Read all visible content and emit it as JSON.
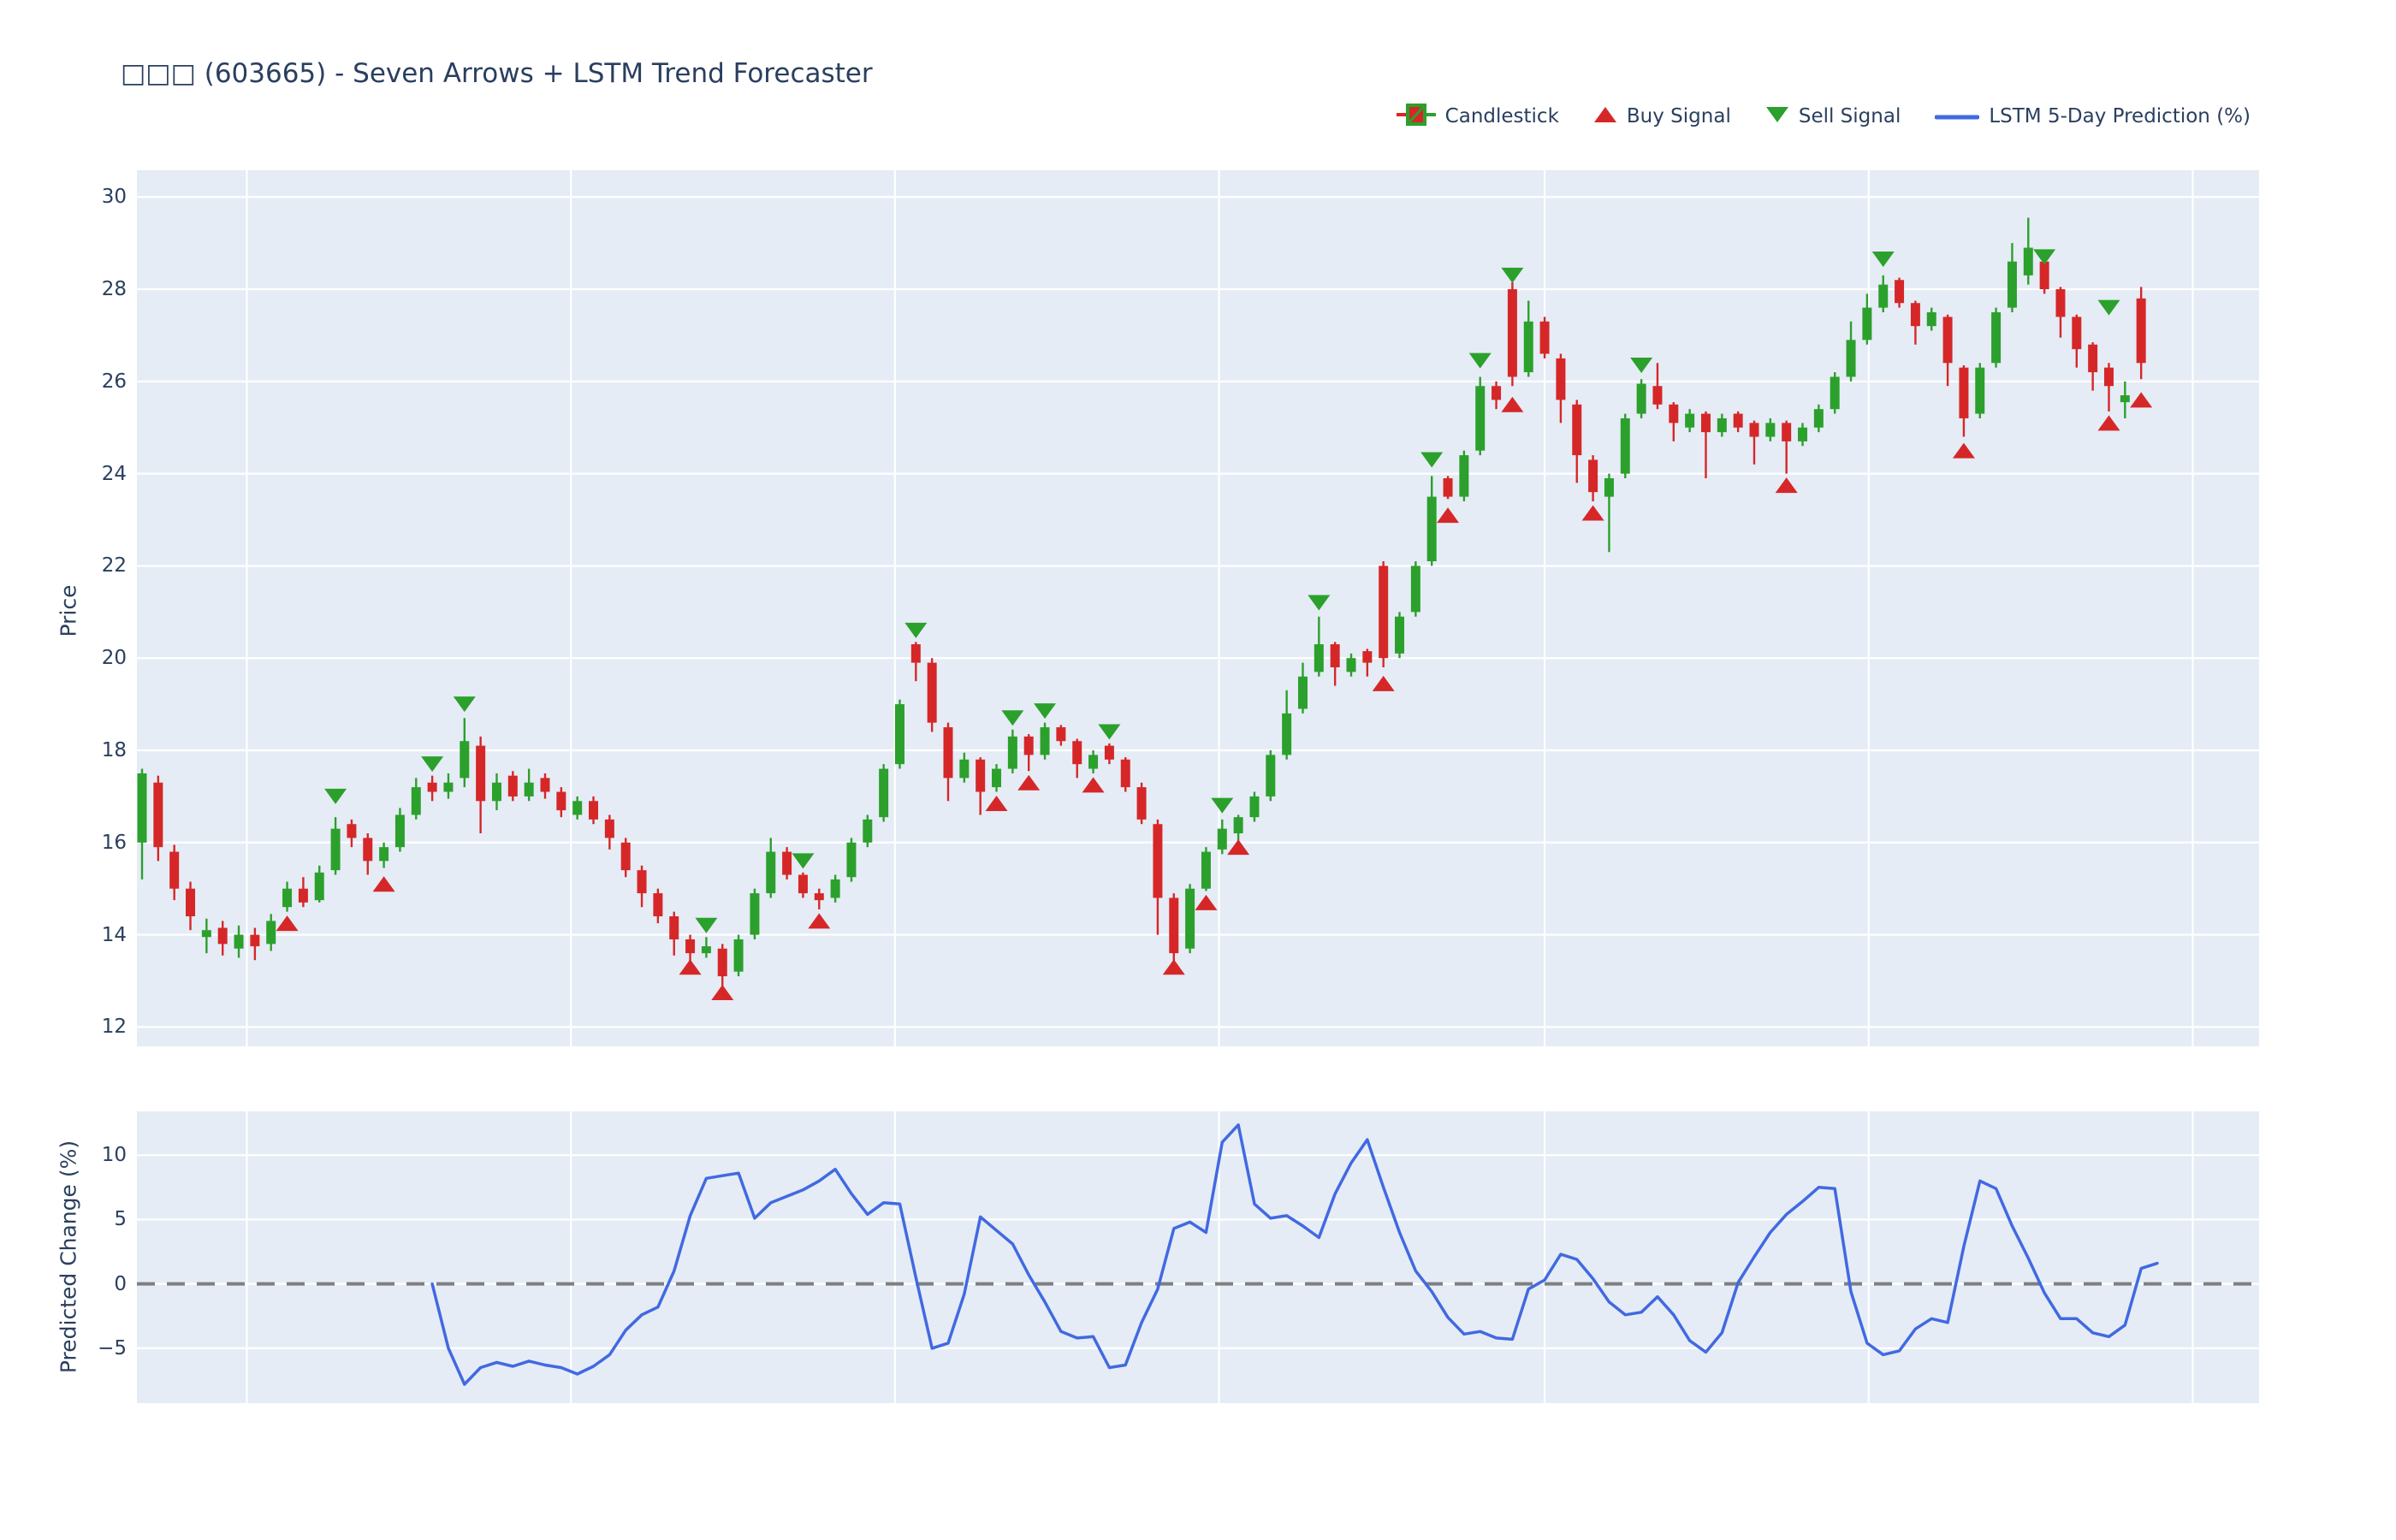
{
  "page": {
    "title": "□□□ (603665) - Seven Arrows + LSTM Trend Forecaster"
  },
  "legend": {
    "items": [
      {
        "id": "candlestick",
        "label": "Candlestick"
      },
      {
        "id": "buy-signal",
        "label": "Buy Signal"
      },
      {
        "id": "sell-signal",
        "label": "Sell Signal"
      },
      {
        "id": "lstm-line",
        "label": "LSTM 5-Day Prediction (%)"
      }
    ]
  },
  "colors": {
    "up": "#2ca02c",
    "down": "#d62728",
    "buy_marker": "#d62728",
    "sell_marker": "#2ca02c",
    "prediction_line": "#4169e1",
    "zero_line": "#7f7f7f",
    "plot_background": "#e5ecf6",
    "gridline": "#ffffff",
    "text": "#2a3f5f"
  },
  "chart_data": {
    "type": "candlestick",
    "title": "□□□ (603665) - Seven Arrows + LSTM Trend Forecaster",
    "layout_hints": {
      "grid": true,
      "x_tick_labels_visible": false,
      "legend_position": "top-right",
      "x_gridline_indices": [
        6.5,
        26.6,
        46.7,
        66.8,
        87.0,
        107.1,
        127.2
      ]
    },
    "price_panel": {
      "ylabel": "Price",
      "ylim": [
        11.58,
        30.58
      ],
      "yticks": [
        {
          "label": "12",
          "value": 12
        },
        {
          "label": "14",
          "value": 14
        },
        {
          "label": "16",
          "value": 16
        },
        {
          "label": "18",
          "value": 18
        },
        {
          "label": "20",
          "value": 20
        },
        {
          "label": "22",
          "value": 22
        },
        {
          "label": "24",
          "value": 24
        },
        {
          "label": "26",
          "value": 26
        },
        {
          "label": "28",
          "value": 28
        },
        {
          "label": "30",
          "value": 30
        }
      ],
      "series_name": "Candlestick",
      "candles_ohlc": [
        [
          16.0,
          17.6,
          15.2,
          17.5
        ],
        [
          17.3,
          17.45,
          15.6,
          15.9
        ],
        [
          15.8,
          15.95,
          14.75,
          15.0
        ],
        [
          15.0,
          15.15,
          14.1,
          14.4
        ],
        [
          13.95,
          14.35,
          13.6,
          14.1
        ],
        [
          14.15,
          14.3,
          13.55,
          13.8
        ],
        [
          13.7,
          14.2,
          13.5,
          14.0
        ],
        [
          14.0,
          14.15,
          13.45,
          13.75
        ],
        [
          13.8,
          14.45,
          13.65,
          14.3
        ],
        [
          14.6,
          15.15,
          14.5,
          15.0
        ],
        [
          15.0,
          15.25,
          14.6,
          14.7
        ],
        [
          14.75,
          15.5,
          14.7,
          15.35
        ],
        [
          15.4,
          16.55,
          15.3,
          16.3
        ],
        [
          16.4,
          16.5,
          15.9,
          16.1
        ],
        [
          16.1,
          16.2,
          15.3,
          15.6
        ],
        [
          15.6,
          16.0,
          15.45,
          15.9
        ],
        [
          15.9,
          16.75,
          15.8,
          16.6
        ],
        [
          16.6,
          17.4,
          16.5,
          17.2
        ],
        [
          17.3,
          17.45,
          16.9,
          17.1
        ],
        [
          17.1,
          17.5,
          16.95,
          17.3
        ],
        [
          17.4,
          18.7,
          17.2,
          18.2
        ],
        [
          18.1,
          18.3,
          16.2,
          16.9
        ],
        [
          16.9,
          17.5,
          16.7,
          17.3
        ],
        [
          17.45,
          17.55,
          16.9,
          17.0
        ],
        [
          17.0,
          17.6,
          16.9,
          17.3
        ],
        [
          17.4,
          17.5,
          16.95,
          17.1
        ],
        [
          17.1,
          17.2,
          16.55,
          16.7
        ],
        [
          16.6,
          17.0,
          16.5,
          16.9
        ],
        [
          16.9,
          17.0,
          16.4,
          16.5
        ],
        [
          16.5,
          16.6,
          15.85,
          16.1
        ],
        [
          16.0,
          16.1,
          15.25,
          15.4
        ],
        [
          15.4,
          15.5,
          14.6,
          14.9
        ],
        [
          14.9,
          15.0,
          14.25,
          14.4
        ],
        [
          14.4,
          14.5,
          13.55,
          13.9
        ],
        [
          13.9,
          14.0,
          13.25,
          13.6
        ],
        [
          13.6,
          13.95,
          13.5,
          13.75
        ],
        [
          13.7,
          13.8,
          12.85,
          13.1
        ],
        [
          13.2,
          14.0,
          13.1,
          13.9
        ],
        [
          14.0,
          15.0,
          13.9,
          14.9
        ],
        [
          14.9,
          16.1,
          14.8,
          15.8
        ],
        [
          15.8,
          15.9,
          15.2,
          15.3
        ],
        [
          15.3,
          15.35,
          14.8,
          14.9
        ],
        [
          14.9,
          15.0,
          14.55,
          14.75
        ],
        [
          14.8,
          15.3,
          14.7,
          15.2
        ],
        [
          15.25,
          16.1,
          15.15,
          16.0
        ],
        [
          16.0,
          16.6,
          15.9,
          16.5
        ],
        [
          16.55,
          17.7,
          16.45,
          17.6
        ],
        [
          17.7,
          19.1,
          17.6,
          19.0
        ],
        [
          20.3,
          20.35,
          19.5,
          19.9
        ],
        [
          19.9,
          20.0,
          18.4,
          18.6
        ],
        [
          18.5,
          18.6,
          16.9,
          17.4
        ],
        [
          17.4,
          17.95,
          17.3,
          17.8
        ],
        [
          17.8,
          17.85,
          16.6,
          17.1
        ],
        [
          17.2,
          17.7,
          17.1,
          17.6
        ],
        [
          17.6,
          18.45,
          17.5,
          18.3
        ],
        [
          18.3,
          18.35,
          17.55,
          17.9
        ],
        [
          17.9,
          18.6,
          17.8,
          18.5
        ],
        [
          18.5,
          18.55,
          18.1,
          18.2
        ],
        [
          18.2,
          18.25,
          17.4,
          17.7
        ],
        [
          17.6,
          18.0,
          17.5,
          17.9
        ],
        [
          18.1,
          18.15,
          17.7,
          17.8
        ],
        [
          17.8,
          17.85,
          17.1,
          17.2
        ],
        [
          17.2,
          17.3,
          16.4,
          16.5
        ],
        [
          16.4,
          16.5,
          14.0,
          14.8
        ],
        [
          14.8,
          14.9,
          13.2,
          13.6
        ],
        [
          13.7,
          15.1,
          13.6,
          15.0
        ],
        [
          15.0,
          15.9,
          14.95,
          15.8
        ],
        [
          15.85,
          16.5,
          15.75,
          16.3
        ],
        [
          16.2,
          16.6,
          16.0,
          16.55
        ],
        [
          16.55,
          17.1,
          16.45,
          17.0
        ],
        [
          17.0,
          18.0,
          16.9,
          17.9
        ],
        [
          17.9,
          19.3,
          17.8,
          18.8
        ],
        [
          18.9,
          19.9,
          18.8,
          19.6
        ],
        [
          19.7,
          20.9,
          19.6,
          20.3
        ],
        [
          20.3,
          20.35,
          19.4,
          19.8
        ],
        [
          19.7,
          20.1,
          19.6,
          20.0
        ],
        [
          20.15,
          20.2,
          19.6,
          19.9
        ],
        [
          22.0,
          22.1,
          19.8,
          20.0
        ],
        [
          20.1,
          21.0,
          20.0,
          20.9
        ],
        [
          21.0,
          22.1,
          20.9,
          22.0
        ],
        [
          22.1,
          23.95,
          22.0,
          23.5
        ],
        [
          23.9,
          23.95,
          23.45,
          23.5
        ],
        [
          23.5,
          24.5,
          23.4,
          24.4
        ],
        [
          24.5,
          26.1,
          24.4,
          25.9
        ],
        [
          25.9,
          26.0,
          25.4,
          25.6
        ],
        [
          28.0,
          28.15,
          25.9,
          26.1
        ],
        [
          26.2,
          27.75,
          26.1,
          27.3
        ],
        [
          27.3,
          27.4,
          26.5,
          26.6
        ],
        [
          26.5,
          26.6,
          25.1,
          25.6
        ],
        [
          25.5,
          25.6,
          23.8,
          24.4
        ],
        [
          24.3,
          24.4,
          23.4,
          23.6
        ],
        [
          23.5,
          24.0,
          22.3,
          23.9
        ],
        [
          24.0,
          25.3,
          23.9,
          25.2
        ],
        [
          25.3,
          26.05,
          25.2,
          25.95
        ],
        [
          25.9,
          26.4,
          25.4,
          25.5
        ],
        [
          25.5,
          25.55,
          24.7,
          25.1
        ],
        [
          25.0,
          25.4,
          24.9,
          25.3
        ],
        [
          25.3,
          25.35,
          23.9,
          24.9
        ],
        [
          24.9,
          25.3,
          24.8,
          25.2
        ],
        [
          25.3,
          25.35,
          24.9,
          25.0
        ],
        [
          25.1,
          25.15,
          24.2,
          24.8
        ],
        [
          24.8,
          25.2,
          24.7,
          25.1
        ],
        [
          25.1,
          25.15,
          24.0,
          24.7
        ],
        [
          24.7,
          25.1,
          24.6,
          25.0
        ],
        [
          25.0,
          25.5,
          24.9,
          25.4
        ],
        [
          25.4,
          26.2,
          25.3,
          26.1
        ],
        [
          26.1,
          27.3,
          26.0,
          26.9
        ],
        [
          26.9,
          27.9,
          26.8,
          27.6
        ],
        [
          27.6,
          28.3,
          27.5,
          28.1
        ],
        [
          28.2,
          28.25,
          27.6,
          27.7
        ],
        [
          27.7,
          27.75,
          26.8,
          27.2
        ],
        [
          27.2,
          27.6,
          27.1,
          27.5
        ],
        [
          27.4,
          27.45,
          25.9,
          26.4
        ],
        [
          26.3,
          26.35,
          24.8,
          25.2
        ],
        [
          25.3,
          26.4,
          25.2,
          26.3
        ],
        [
          26.4,
          27.6,
          26.3,
          27.5
        ],
        [
          27.6,
          29.0,
          27.5,
          28.6
        ],
        [
          28.3,
          29.55,
          28.1,
          28.9
        ],
        [
          28.6,
          28.75,
          27.9,
          28.0
        ],
        [
          28.0,
          28.05,
          26.95,
          27.4
        ],
        [
          27.4,
          27.45,
          26.3,
          26.7
        ],
        [
          26.8,
          26.85,
          25.8,
          26.2
        ],
        [
          26.3,
          26.4,
          25.35,
          25.9
        ],
        [
          25.55,
          26.0,
          25.2,
          25.7
        ],
        [
          27.8,
          28.05,
          26.05,
          26.4
        ]
      ],
      "buy_signals": [
        {
          "i": 9,
          "price": 14.25
        },
        {
          "i": 15,
          "price": 15.1
        },
        {
          "i": 34,
          "price": 13.3
        },
        {
          "i": 36,
          "price": 12.75
        },
        {
          "i": 42,
          "price": 14.3
        },
        {
          "i": 53,
          "price": 16.85
        },
        {
          "i": 55,
          "price": 17.3
        },
        {
          "i": 59,
          "price": 17.25
        },
        {
          "i": 64,
          "price": 13.3
        },
        {
          "i": 66,
          "price": 14.7
        },
        {
          "i": 68,
          "price": 15.9
        },
        {
          "i": 77,
          "price": 19.45
        },
        {
          "i": 81,
          "price": 23.1
        },
        {
          "i": 85,
          "price": 25.5
        },
        {
          "i": 90,
          "price": 23.15
        },
        {
          "i": 102,
          "price": 23.75
        },
        {
          "i": 113,
          "price": 24.5
        },
        {
          "i": 122,
          "price": 25.1
        },
        {
          "i": 124,
          "price": 25.6
        }
      ],
      "sell_signals": [
        {
          "i": 12,
          "price": 17.0
        },
        {
          "i": 18,
          "price": 17.7
        },
        {
          "i": 20,
          "price": 19.0
        },
        {
          "i": 35,
          "price": 14.2
        },
        {
          "i": 41,
          "price": 15.6
        },
        {
          "i": 48,
          "price": 20.6
        },
        {
          "i": 54,
          "price": 18.7
        },
        {
          "i": 56,
          "price": 18.85
        },
        {
          "i": 60,
          "price": 18.4
        },
        {
          "i": 67,
          "price": 16.8
        },
        {
          "i": 73,
          "price": 21.2
        },
        {
          "i": 80,
          "price": 24.3
        },
        {
          "i": 83,
          "price": 26.45
        },
        {
          "i": 85,
          "price": 28.3
        },
        {
          "i": 93,
          "price": 26.35
        },
        {
          "i": 108,
          "price": 28.65
        },
        {
          "i": 118,
          "price": 28.7
        },
        {
          "i": 122,
          "price": 27.6
        }
      ]
    },
    "prediction_panel": {
      "ylabel": "Predicted Change (%)",
      "ylim": [
        -9.26,
        13.4
      ],
      "yticks": [
        {
          "label": "10",
          "value": 10
        },
        {
          "label": "5",
          "value": 5
        },
        {
          "label": "0",
          "value": 0
        },
        {
          "label": "−5",
          "value": -5
        }
      ],
      "series_name": "LSTM 5-Day Prediction (%)",
      "zero_line": {
        "value": 0,
        "style": "dashed"
      },
      "start_index": 18,
      "values": [
        0.0,
        -5.0,
        -7.8,
        -6.5,
        -6.1,
        -6.4,
        -6.0,
        -6.3,
        -6.5,
        -7.0,
        -6.4,
        -5.5,
        -3.6,
        -2.4,
        -1.8,
        1.0,
        5.3,
        8.2,
        8.4,
        8.6,
        5.1,
        6.3,
        6.8,
        7.3,
        8.0,
        8.9,
        7.0,
        5.4,
        6.3,
        6.2,
        0.5,
        -5.0,
        -4.6,
        -0.8,
        5.2,
        4.15,
        3.1,
        0.7,
        -1.4,
        -3.7,
        -4.2,
        -4.1,
        -6.5,
        -6.3,
        -3.0,
        -0.4,
        4.3,
        4.8,
        4.0,
        11.0,
        12.35,
        6.2,
        5.1,
        5.3,
        4.5,
        3.6,
        7.0,
        9.4,
        11.2,
        7.5,
        4.0,
        1.0,
        -0.6,
        -2.6,
        -3.9,
        -3.7,
        -4.2,
        -4.3,
        -0.4,
        0.3,
        2.3,
        1.9,
        0.4,
        -1.4,
        -2.4,
        -2.2,
        -1.0,
        -2.4,
        -4.4,
        -5.3,
        -3.8,
        0.1,
        2.1,
        4.0,
        5.4,
        6.4,
        7.5,
        7.4,
        -0.6,
        -4.6,
        -5.5,
        -5.2,
        -3.5,
        -2.7,
        -3.0,
        2.9,
        8.0,
        7.4,
        4.5,
        2.0,
        -0.7,
        -2.7,
        -2.7,
        -3.8,
        -4.1,
        -3.2,
        1.2,
        1.6
      ]
    }
  }
}
